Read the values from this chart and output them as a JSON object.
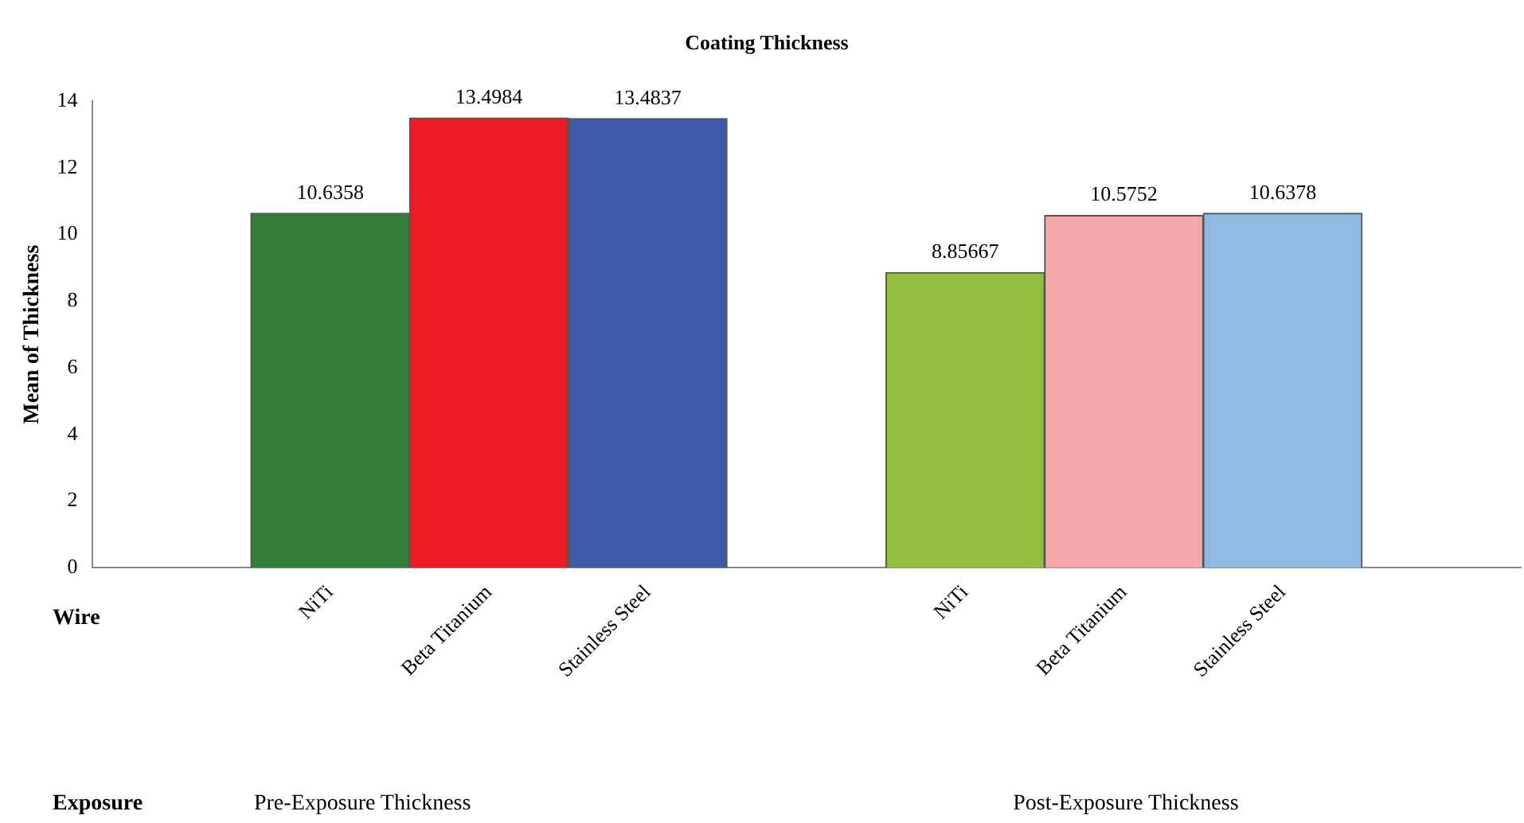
{
  "chart_data": {
    "type": "bar",
    "title": "Coating Thickness",
    "ylabel": "Mean of Thickness",
    "categories": [
      null,
      "NiTi",
      "Beta Titanium",
      "Stainless Steel",
      null,
      "NiTi",
      "Beta Titanium",
      "Stainless Steel",
      null
    ],
    "values": [
      null,
      10.6358,
      13.4984,
      13.4837,
      null,
      8.85667,
      10.5752,
      10.6378,
      null
    ],
    "colors": [
      "#ffffff",
      "#357e3a",
      "#ed1c24",
      "#3f5aa8",
      "#ffffff",
      "#95c03f",
      "#f4a6a8",
      "#8fbbe3",
      "#ffffff"
    ],
    "data_labels": true,
    "ylim": [
      0,
      14
    ],
    "yticks": [
      0,
      2,
      4,
      6,
      8,
      10,
      12,
      14
    ],
    "grid": false,
    "legend": false,
    "annotations": [
      "Wire",
      "Exposure",
      "Pre-Exposure Thickness",
      "Post-Exposure Thickness"
    ]
  }
}
